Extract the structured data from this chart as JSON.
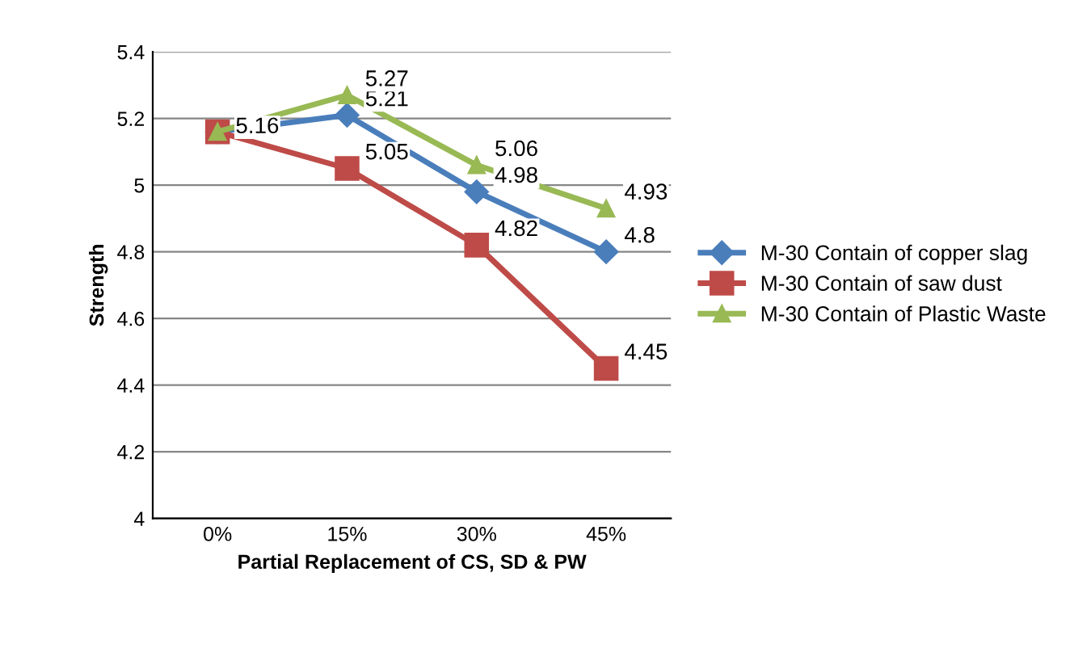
{
  "chart_data": {
    "type": "line",
    "xlabel": "Partial Replacement of CS, SD & PW",
    "ylabel": "Strength",
    "categories": [
      "0%",
      "15%",
      "30%",
      "45%"
    ],
    "series": [
      {
        "name": "M-30 Contain of copper slag",
        "color": "#4a7ebb",
        "marker": "diamond",
        "values": [
          5.16,
          5.21,
          4.98,
          4.8
        ],
        "value_labels": [
          "5.16",
          "5.21",
          "4.98",
          "4.8"
        ]
      },
      {
        "name": "M-30 Contain of saw dust",
        "color": "#be4b48",
        "marker": "square",
        "values": [
          5.16,
          5.05,
          4.82,
          4.45
        ],
        "value_labels": [
          null,
          "5.05",
          "4.82",
          "4.45"
        ]
      },
      {
        "name": "M-30 Contain of Plastic Waste",
        "color": "#98b954",
        "marker": "triangle",
        "values": [
          5.16,
          5.27,
          5.06,
          4.93
        ],
        "value_labels": [
          null,
          "5.27",
          "5.06",
          "4.93"
        ]
      }
    ],
    "ylim": [
      4,
      5.4
    ],
    "yticks": [
      4,
      4.2,
      4.4,
      4.6,
      4.8,
      5,
      5.2,
      5.4
    ],
    "grid": "y",
    "legend": "right"
  }
}
